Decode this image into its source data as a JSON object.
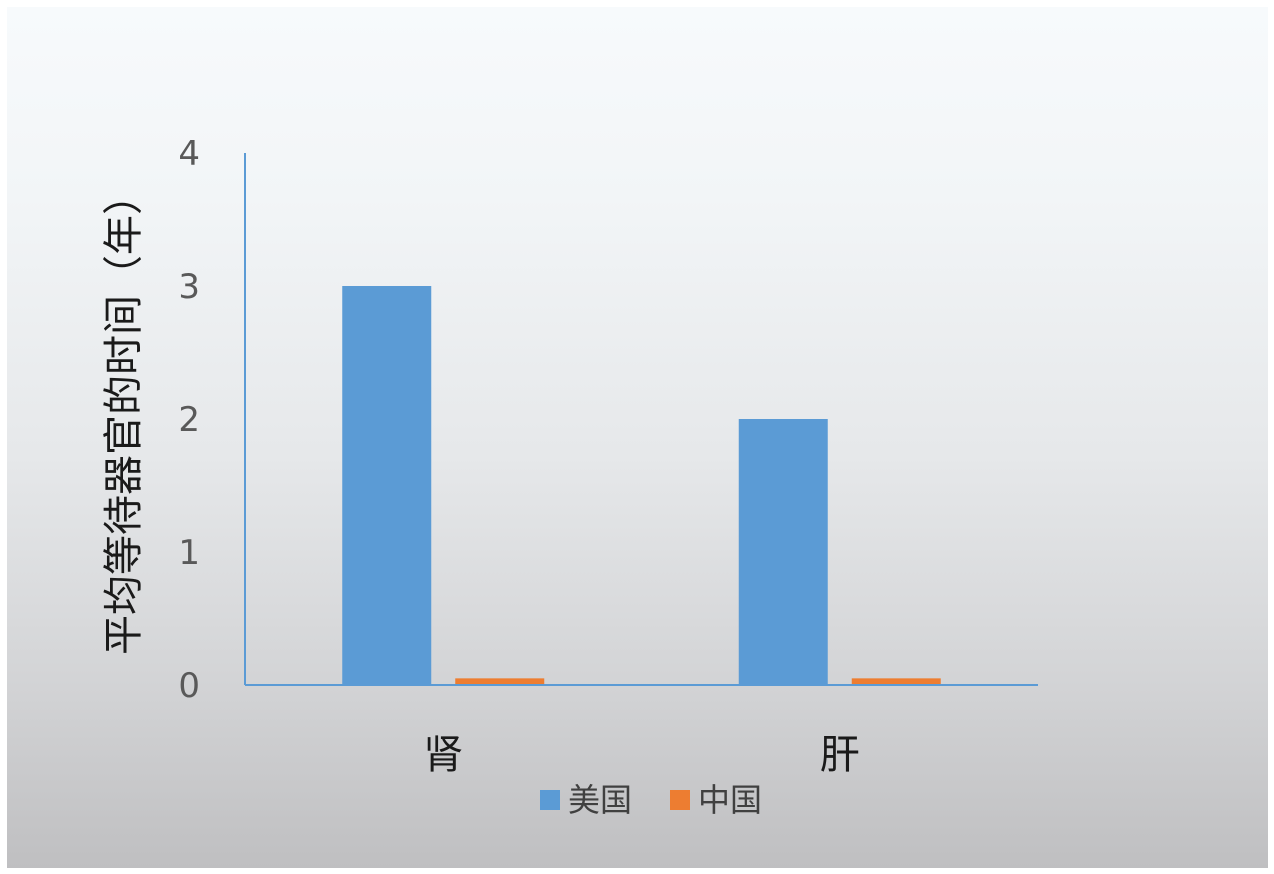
{
  "chart_data": {
    "type": "bar",
    "categories": [
      "肾",
      "肝"
    ],
    "series": [
      {
        "name": "美国",
        "values": [
          3,
          2
        ],
        "color": "#5b9bd5"
      },
      {
        "name": "中国",
        "values": [
          0.05,
          0.05
        ],
        "color": "#ed7d31"
      }
    ],
    "ylabel": "平均等待器官的时间（年）",
    "xlabel": "",
    "ylim": [
      0,
      4
    ],
    "yticks": [
      "0",
      "1",
      "2",
      "3",
      "4"
    ],
    "axis_color": "#5b9bd5",
    "grid": false,
    "legend_position": "bottom"
  }
}
